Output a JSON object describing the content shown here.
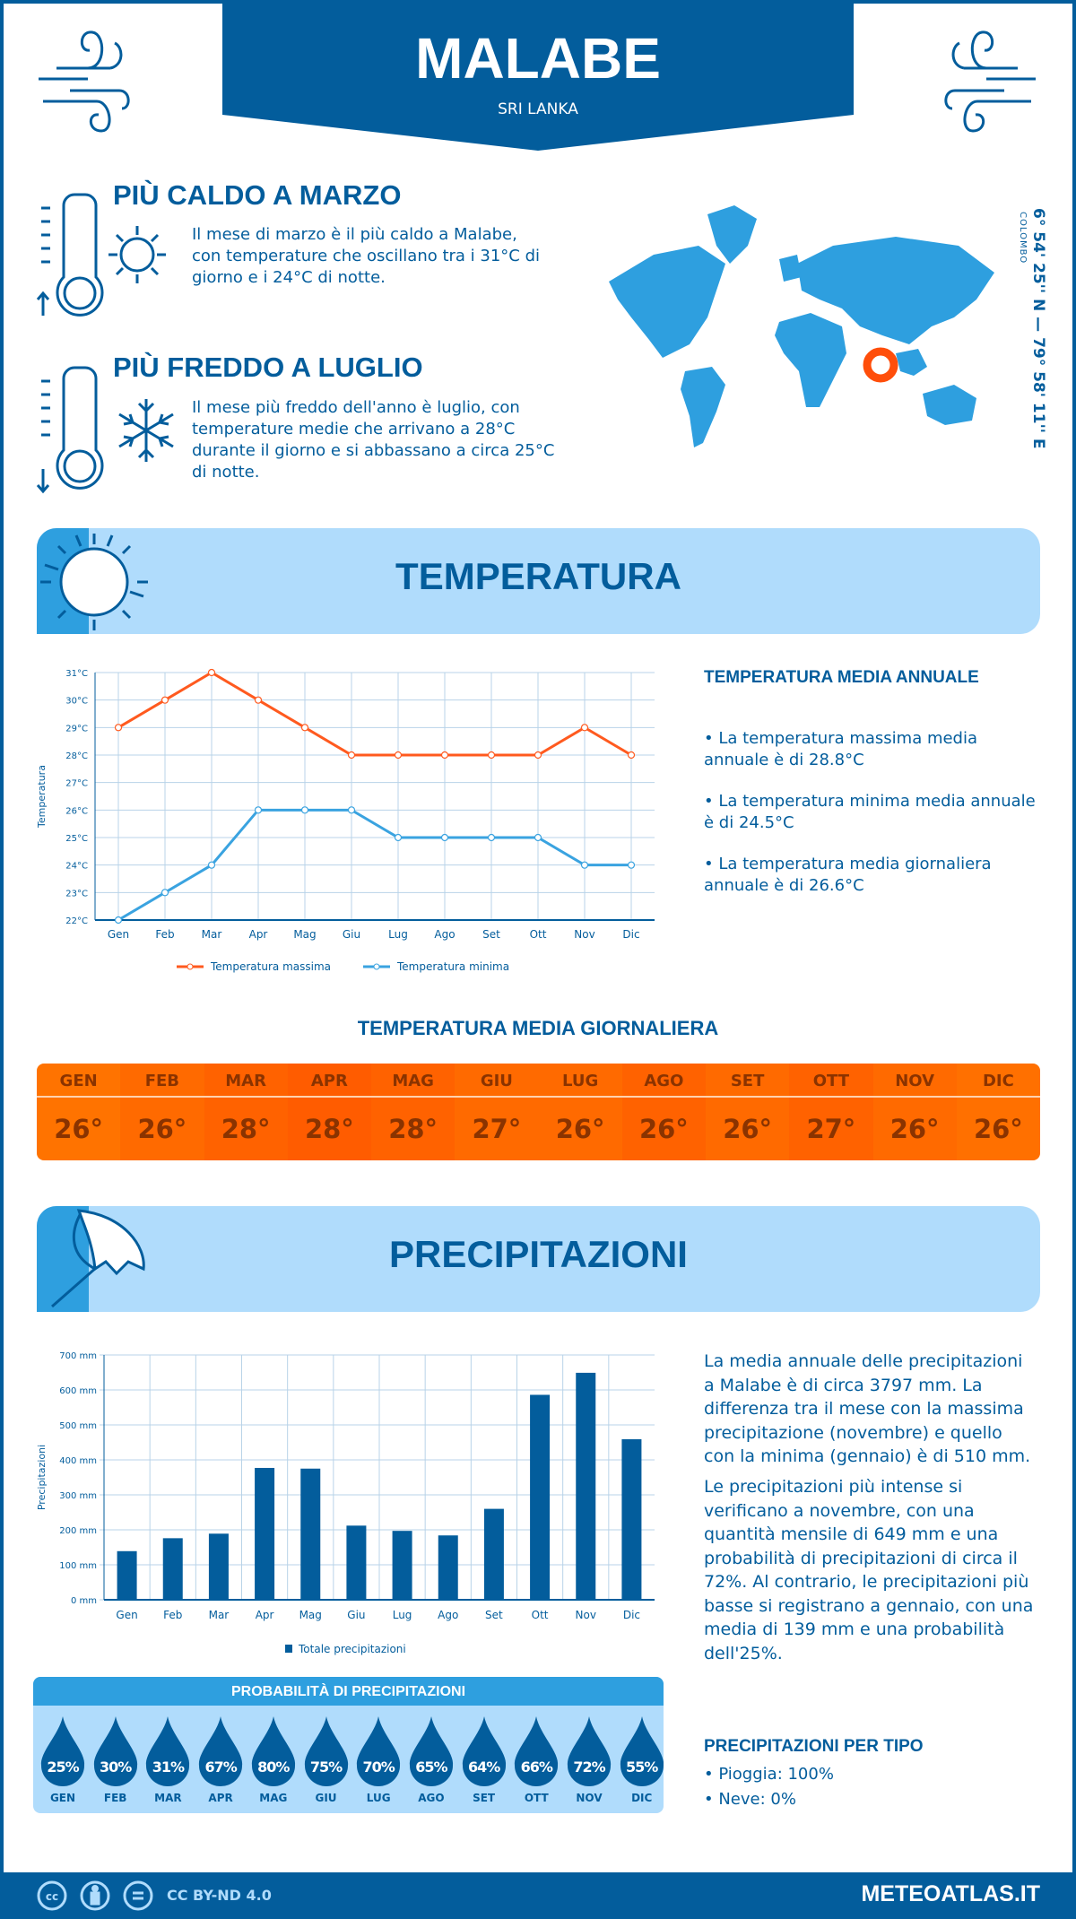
{
  "header": {
    "title": "MALABE",
    "country": "SRI LANKA"
  },
  "warmest": {
    "title": "PIÙ CALDO A MARZO",
    "text": "Il mese di marzo è il più caldo a Malabe, con temperature che oscillano tra i 31°C di giorno e i 24°C di notte."
  },
  "coldest": {
    "title": "PIÙ FREDDO A LUGLIO",
    "text": "Il mese più freddo dell'anno è luglio, con temperature medie che arrivano a 28°C durante il giorno e si abbassano a circa 25°C di notte."
  },
  "map": {
    "coordinates": "6° 54' 25'' N — 79° 58' 11'' E",
    "nearest_city": "COLOMBO",
    "marker_color": "#ff4e0a"
  },
  "colors": {
    "primary": "#035d9c",
    "light": "#b0dcfc",
    "accent": "#2e9fdf",
    "max": "#ff5a1f",
    "min": "#3aa3e0",
    "daily": "#ff6a00"
  },
  "temperature": {
    "section_title": "TEMPERATURA",
    "annual_title": "TEMPERATURA MEDIA ANNUALE",
    "annual_bullets": [
      "• La temperatura massima media annuale è di 28.8°C",
      "• La temperatura minima media annuale è di 24.5°C",
      "• La temperatura media giornaliera annuale è di 26.6°C"
    ],
    "daily_title": "TEMPERATURA MEDIA GIORNALIERA",
    "daily": [
      {
        "m": "GEN",
        "v": "26°"
      },
      {
        "m": "FEB",
        "v": "26°"
      },
      {
        "m": "MAR",
        "v": "28°"
      },
      {
        "m": "APR",
        "v": "28°"
      },
      {
        "m": "MAG",
        "v": "28°"
      },
      {
        "m": "GIU",
        "v": "27°"
      },
      {
        "m": "LUG",
        "v": "26°"
      },
      {
        "m": "AGO",
        "v": "26°"
      },
      {
        "m": "SET",
        "v": "26°"
      },
      {
        "m": "OTT",
        "v": "27°"
      },
      {
        "m": "NOV",
        "v": "26°"
      },
      {
        "m": "DIC",
        "v": "26°"
      }
    ]
  },
  "precipitation": {
    "section_title": "PRECIPITAZIONI",
    "text1": "La media annuale delle precipitazioni a Malabe è di circa 3797 mm. La differenza tra il mese con la massima precipitazione (novembre) e quello con la minima (gennaio) è di 510 mm.",
    "text2": "Le precipitazioni più intense si verificano a novembre, con una quantità mensile di 649 mm e una probabilità di precipitazioni di circa il 72%. Al contrario, le precipitazioni più basse si registrano a gennaio, con una media di 139 mm e una probabilità dell'25%.",
    "prob_title": "PROBABILITÀ DI PRECIPITAZIONI",
    "prob": [
      {
        "m": "GEN",
        "v": "25%"
      },
      {
        "m": "FEB",
        "v": "30%"
      },
      {
        "m": "MAR",
        "v": "31%"
      },
      {
        "m": "APR",
        "v": "67%"
      },
      {
        "m": "MAG",
        "v": "80%"
      },
      {
        "m": "GIU",
        "v": "75%"
      },
      {
        "m": "LUG",
        "v": "70%"
      },
      {
        "m": "AGO",
        "v": "65%"
      },
      {
        "m": "SET",
        "v": "64%"
      },
      {
        "m": "OTT",
        "v": "66%"
      },
      {
        "m": "NOV",
        "v": "72%"
      },
      {
        "m": "DIC",
        "v": "55%"
      }
    ],
    "type_title": "PRECIPITAZIONI PER TIPO",
    "types": [
      "• Pioggia: 100%",
      "• Neve: 0%"
    ]
  },
  "chart_data": [
    {
      "type": "line",
      "categories": [
        "Gen",
        "Feb",
        "Mar",
        "Apr",
        "Mag",
        "Giu",
        "Lug",
        "Ago",
        "Set",
        "Ott",
        "Nov",
        "Dic"
      ],
      "series": [
        {
          "name": "Temperatura massima",
          "values": [
            29,
            30,
            31,
            30,
            29,
            28,
            28,
            28,
            28,
            28,
            29,
            28
          ]
        },
        {
          "name": "Temperatura minima",
          "values": [
            22,
            23,
            24,
            26,
            26,
            26,
            25,
            25,
            25,
            25,
            24,
            24
          ]
        }
      ],
      "ylabel": "Temperatura",
      "ylim": [
        22,
        31
      ],
      "yticks": [
        "22°C",
        "23°C",
        "24°C",
        "25°C",
        "26°C",
        "27°C",
        "28°C",
        "29°C",
        "30°C",
        "31°C"
      ],
      "grid": true,
      "legend": "bottom"
    },
    {
      "type": "bar",
      "categories": [
        "Gen",
        "Feb",
        "Mar",
        "Apr",
        "Mag",
        "Giu",
        "Lug",
        "Ago",
        "Set",
        "Ott",
        "Nov",
        "Dic"
      ],
      "series": [
        {
          "name": "Totale precipitazioni",
          "values": [
            139,
            176,
            189,
            377,
            375,
            212,
            197,
            184,
            260,
            586,
            649,
            459
          ]
        }
      ],
      "ylabel": "Precipitazioni",
      "ylim": [
        0,
        700
      ],
      "yticks": [
        "0 mm",
        "100 mm",
        "200 mm",
        "300 mm",
        "400 mm",
        "500 mm",
        "600 mm",
        "700 mm"
      ],
      "grid": true,
      "legend": "bottom"
    }
  ],
  "footer": {
    "license": "CC BY-ND 4.0",
    "site": "METEOATLAS.IT"
  }
}
